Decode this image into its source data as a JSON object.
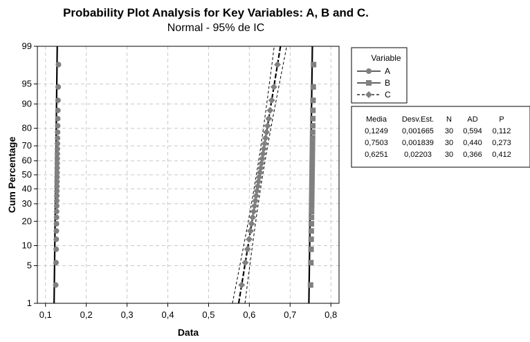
{
  "chart_data": {
    "type": "scatter",
    "subtype": "normal-probability-plot",
    "title": "Probability Plot Analysis for Key Variables: A, B and C.",
    "subtitle": "Normal - 95% de IC",
    "xlabel": "Data",
    "ylabel": "Cum Percentage",
    "xlim": [
      0.08,
      0.82
    ],
    "ylim_percent": [
      1,
      99
    ],
    "y_scale": "normal-probability",
    "x_ticks": [
      "0,1",
      "0,2",
      "0,3",
      "0,4",
      "0,5",
      "0,6",
      "0,7",
      "0,8"
    ],
    "x_tick_values": [
      0.1,
      0.2,
      0.3,
      0.4,
      0.5,
      0.6,
      0.7,
      0.8
    ],
    "y_ticks": [
      "1",
      "5",
      "10",
      "20",
      "30",
      "40",
      "50",
      "60",
      "70",
      "80",
      "90",
      "95",
      "99"
    ],
    "y_tick_values": [
      1,
      5,
      10,
      20,
      30,
      40,
      50,
      60,
      70,
      80,
      90,
      95,
      99
    ],
    "grid": true,
    "legend": {
      "title": "Variable",
      "position": "right",
      "entries": [
        {
          "name": "A",
          "marker": "circle",
          "line": "solid",
          "color": "#808080"
        },
        {
          "name": "B",
          "marker": "square",
          "line": "solid",
          "color": "#808080"
        },
        {
          "name": "C",
          "marker": "diamond",
          "line": "dashed",
          "color": "#808080"
        }
      ]
    },
    "stats_table": {
      "headers": [
        "Media",
        "Desv.Est.",
        "N",
        "AD",
        "P"
      ],
      "rows": [
        [
          "0,1249",
          "0,001665",
          "30",
          "0,594",
          "0,112"
        ],
        [
          "0,7503",
          "0,001839",
          "30",
          "0,440",
          "0,273"
        ],
        [
          "0,6251",
          "0,02203",
          "30",
          "0,366",
          "0,412"
        ]
      ]
    },
    "series": [
      {
        "name": "A",
        "mean": 0.1249,
        "stdev": 0.001665,
        "n": 30,
        "marker": "circle",
        "line": "solid"
      },
      {
        "name": "B",
        "mean": 0.7503,
        "stdev": 0.001839,
        "n": 30,
        "marker": "square",
        "line": "solid"
      },
      {
        "name": "C",
        "mean": 0.6251,
        "stdev": 0.02203,
        "n": 30,
        "marker": "diamond",
        "line": "dashed",
        "confidence_band": 0.95
      }
    ]
  }
}
